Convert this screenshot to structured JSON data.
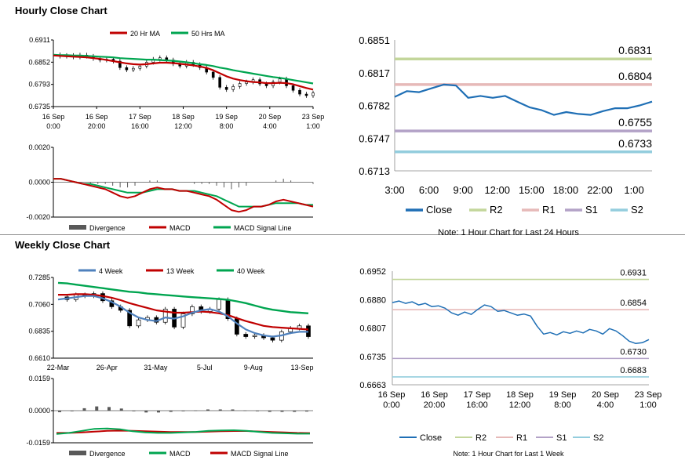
{
  "sections": {
    "hourly_title": "Hourly Close Chart",
    "weekly_title": "Weekly Close Chart"
  },
  "colors": {
    "ma_short": "#c00000",
    "ma_long": "#00a550",
    "signal_line_hourly": "#00a550",
    "macd_hourly": "#c00000",
    "weekly_4wk": "#4f81bd",
    "close_line": "#1f6fb5",
    "r2": "#c3d69b",
    "r1": "#e6b9b8",
    "s1": "#b3a2c7",
    "s2": "#93cddd",
    "divergence": "#595959"
  },
  "chart_data": [
    {
      "id": "hourly_price",
      "type": "line",
      "legend": [
        "20 Hr MA",
        "50 Hrs MA"
      ],
      "legend_placement": "top",
      "ylim": [
        0.6735,
        0.6911
      ],
      "y_ticks": [
        "0.6911",
        "0.6852",
        "0.6793",
        "0.6735"
      ],
      "x_ticks": [
        [
          "16 Sep",
          "0:00"
        ],
        [
          "16 Sep",
          "20:00"
        ],
        [
          "17 Sep",
          "16:00"
        ],
        [
          "18 Sep",
          "12:00"
        ],
        [
          "19 Sep",
          "8:00"
        ],
        [
          "20 Sep",
          "4:00"
        ],
        [
          "23 Sep",
          "1:00"
        ]
      ],
      "close": [
        0.6872,
        0.6868,
        0.687,
        0.6866,
        0.6871,
        0.6868,
        0.6862,
        0.6858,
        0.686,
        0.6855,
        0.6838,
        0.6832,
        0.6836,
        0.6842,
        0.6852,
        0.686,
        0.6864,
        0.6858,
        0.6848,
        0.6842,
        0.6852,
        0.6846,
        0.6838,
        0.6826,
        0.6812,
        0.6786,
        0.678,
        0.6788,
        0.6796,
        0.68,
        0.6806,
        0.6795,
        0.679,
        0.68,
        0.6808,
        0.679,
        0.6778,
        0.6768,
        0.6764,
        0.6771
      ],
      "ma20": [
        0.687,
        0.6869,
        0.6868,
        0.6867,
        0.6866,
        0.6865,
        0.6863,
        0.6861,
        0.6858,
        0.6855,
        0.6852,
        0.6849,
        0.6847,
        0.6846,
        0.6847,
        0.6849,
        0.6851,
        0.6851,
        0.685,
        0.6848,
        0.6846,
        0.6844,
        0.6841,
        0.6837,
        0.6831,
        0.6823,
        0.6815,
        0.6809,
        0.6805,
        0.6802,
        0.68,
        0.6799,
        0.6797,
        0.6797,
        0.6798,
        0.6797,
        0.6794,
        0.6789,
        0.6784,
        0.678
      ],
      "ma50": [
        0.6872,
        0.6871,
        0.6871,
        0.687,
        0.687,
        0.6869,
        0.6868,
        0.6867,
        0.6866,
        0.6865,
        0.6863,
        0.6862,
        0.6861,
        0.686,
        0.6859,
        0.6859,
        0.6858,
        0.6857,
        0.6856,
        0.6854,
        0.6852,
        0.685,
        0.6847,
        0.6845,
        0.6842,
        0.6838,
        0.6835,
        0.6831,
        0.6828,
        0.6825,
        0.6822,
        0.6819,
        0.6816,
        0.6813,
        0.6811,
        0.6808,
        0.6805,
        0.6802,
        0.6799,
        0.6796
      ]
    },
    {
      "id": "hourly_macd",
      "type": "line",
      "legend": [
        "Divergence",
        "MACD",
        "MACD Signal Line"
      ],
      "legend_placement": "bottom",
      "ylim": [
        -0.002,
        0.002
      ],
      "y_ticks": [
        "0.0020",
        "0.0000",
        "-0.0020"
      ],
      "macd": [
        0.0002,
        0.0002,
        0.0001,
        0.0,
        -0.0001,
        -0.0002,
        -0.0003,
        -0.0004,
        -0.0006,
        -0.0008,
        -0.0009,
        -0.0008,
        -0.0006,
        -0.0004,
        -0.0003,
        -0.0004,
        -0.0004,
        -0.0005,
        -0.0005,
        -0.0006,
        -0.0007,
        -0.0008,
        -0.001,
        -0.0013,
        -0.0016,
        -0.0017,
        -0.0016,
        -0.0014,
        -0.0014,
        -0.0013,
        -0.0011,
        -0.001,
        -0.0011,
        -0.0012,
        -0.0013,
        -0.0014
      ],
      "signal": [
        0.0002,
        0.0002,
        0.0001,
        0.0,
        -0.0001,
        -0.0001,
        -0.0002,
        -0.0003,
        -0.0004,
        -0.0005,
        -0.0006,
        -0.0006,
        -0.0006,
        -0.0005,
        -0.0004,
        -0.0004,
        -0.0004,
        -0.0005,
        -0.0005,
        -0.0005,
        -0.0006,
        -0.0007,
        -0.0008,
        -0.001,
        -0.0012,
        -0.0014,
        -0.0014,
        -0.0014,
        -0.0014,
        -0.0013,
        -0.0012,
        -0.0012,
        -0.0012,
        -0.0012,
        -0.0013,
        -0.0013
      ]
    },
    {
      "id": "hourly_24h",
      "type": "line",
      "ylim": [
        0.6713,
        0.6851
      ],
      "y_ticks": [
        "0.6851",
        "0.6817",
        "0.6782",
        "0.6747",
        "0.6713"
      ],
      "x_ticks": [
        "3:00",
        "6:00",
        "9:00",
        "12:00",
        "15:00",
        "18:00",
        "22:00",
        "1:00"
      ],
      "close": [
        0.6791,
        0.6797,
        0.6796,
        0.68,
        0.6804,
        0.6803,
        0.679,
        0.6792,
        0.679,
        0.6792,
        0.6786,
        0.678,
        0.6777,
        0.6772,
        0.6775,
        0.6773,
        0.6772,
        0.6776,
        0.6779,
        0.6779,
        0.6782,
        0.6786
      ],
      "levels": [
        {
          "name": "R2",
          "value": 0.6831,
          "label": "0.6831"
        },
        {
          "name": "R1",
          "value": 0.6804,
          "label": "0.6804"
        },
        {
          "name": "S1",
          "value": 0.6755,
          "label": "0.6755"
        },
        {
          "name": "S2",
          "value": 0.6733,
          "label": "0.6733"
        }
      ],
      "legend": [
        "Close",
        "R2",
        "R1",
        "S1",
        "S2"
      ],
      "legend_placement": "bottom",
      "note": "Note: 1 Hour Chart for Last 24 Hours"
    },
    {
      "id": "weekly_price",
      "type": "line",
      "legend": [
        "4 Week",
        "13 Week",
        "40 Week"
      ],
      "legend_placement": "top",
      "ylim": [
        0.661,
        0.7285
      ],
      "y_ticks": [
        "0.7285",
        "0.7060",
        "0.6835",
        "0.6610"
      ],
      "x_ticks": [
        "22-Mar",
        "26-Apr",
        "31-May",
        "5-Jul",
        "9-Aug",
        "13-Sep"
      ],
      "close": [
        0.7122,
        0.71,
        0.714,
        0.713,
        0.715,
        0.709,
        0.704,
        0.701,
        0.688,
        0.693,
        0.695,
        0.691,
        0.702,
        0.687,
        0.698,
        0.704,
        0.7,
        0.702,
        0.71,
        0.694,
        0.681,
        0.679,
        0.68,
        0.678,
        0.676,
        0.683,
        0.686,
        0.688,
        0.679
      ],
      "w4": [
        0.71,
        0.711,
        0.712,
        0.713,
        0.713,
        0.711,
        0.708,
        0.704,
        0.699,
        0.695,
        0.693,
        0.692,
        0.695,
        0.694,
        0.696,
        0.699,
        0.701,
        0.702,
        0.7,
        0.696,
        0.69,
        0.685,
        0.682,
        0.68,
        0.679,
        0.68,
        0.682,
        0.683,
        0.683
      ],
      "w13": [
        0.714,
        0.714,
        0.7145,
        0.7145,
        0.714,
        0.713,
        0.7115,
        0.7095,
        0.707,
        0.705,
        0.703,
        0.701,
        0.7,
        0.699,
        0.699,
        0.6995,
        0.7,
        0.6995,
        0.6985,
        0.697,
        0.6945,
        0.692,
        0.69,
        0.688,
        0.687,
        0.6865,
        0.686,
        0.6855,
        0.685
      ],
      "w40": [
        0.724,
        0.7235,
        0.7225,
        0.7215,
        0.7205,
        0.7195,
        0.7185,
        0.7175,
        0.7165,
        0.716,
        0.715,
        0.7145,
        0.7138,
        0.7132,
        0.7126,
        0.712,
        0.7115,
        0.711,
        0.7105,
        0.7098,
        0.7085,
        0.707,
        0.705,
        0.703,
        0.7015,
        0.7005,
        0.6995,
        0.699,
        0.6985
      ]
    },
    {
      "id": "weekly_macd",
      "type": "line",
      "legend": [
        "Divergence",
        "MACD",
        "MACD Signal Line"
      ],
      "legend_placement": "bottom",
      "ylim": [
        -0.0159,
        0.0159
      ],
      "y_ticks": [
        "0.0159",
        "0.0000",
        "-0.0159"
      ],
      "macd": [
        -0.0115,
        -0.011,
        -0.01,
        -0.009,
        -0.0088,
        -0.0092,
        -0.0102,
        -0.0108,
        -0.011,
        -0.011,
        -0.0108,
        -0.0105,
        -0.01,
        -0.0098,
        -0.0097,
        -0.01,
        -0.0105,
        -0.011,
        -0.0112,
        -0.0114,
        -0.0114
      ],
      "signal": [
        -0.011,
        -0.011,
        -0.0108,
        -0.0104,
        -0.01,
        -0.0099,
        -0.01,
        -0.0102,
        -0.0104,
        -0.0106,
        -0.0106,
        -0.0106,
        -0.0104,
        -0.0102,
        -0.0101,
        -0.0101,
        -0.0103,
        -0.0106,
        -0.0108,
        -0.011,
        -0.0111
      ]
    },
    {
      "id": "weekly_1w",
      "type": "line",
      "ylim": [
        0.6663,
        0.6952
      ],
      "y_ticks": [
        "0.6952",
        "0.6880",
        "0.6807",
        "0.6735",
        "0.6663"
      ],
      "x_ticks": [
        [
          "16 Sep",
          "0:00"
        ],
        [
          "16 Sep",
          "20:00"
        ],
        [
          "17 Sep",
          "16:00"
        ],
        [
          "18 Sep",
          "12:00"
        ],
        [
          "19 Sep",
          "8:00"
        ],
        [
          "20 Sep",
          "4:00"
        ],
        [
          "23 Sep",
          "1:00"
        ]
      ],
      "close": [
        0.6872,
        0.6876,
        0.687,
        0.6874,
        0.6866,
        0.687,
        0.6862,
        0.6864,
        0.6858,
        0.6846,
        0.684,
        0.6848,
        0.6842,
        0.6855,
        0.6866,
        0.6862,
        0.685,
        0.6852,
        0.6846,
        0.684,
        0.6843,
        0.6838,
        0.6812,
        0.6792,
        0.6796,
        0.679,
        0.6798,
        0.6794,
        0.68,
        0.6795,
        0.6804,
        0.68,
        0.6792,
        0.6806,
        0.68,
        0.6788,
        0.6774,
        0.6768,
        0.677,
        0.6778
      ],
      "levels": [
        {
          "name": "R2",
          "value": 0.6931,
          "label": "0.6931"
        },
        {
          "name": "R1",
          "value": 0.6854,
          "label": "0.6854"
        },
        {
          "name": "S1",
          "value": 0.673,
          "label": "0.6730"
        },
        {
          "name": "S2",
          "value": 0.6683,
          "label": "0.6683"
        }
      ],
      "legend": [
        "Close",
        "R2",
        "R1",
        "S1",
        "S2"
      ],
      "legend_placement": "bottom",
      "note": "Note: 1 Hour Chart for Last 1 Week"
    }
  ]
}
